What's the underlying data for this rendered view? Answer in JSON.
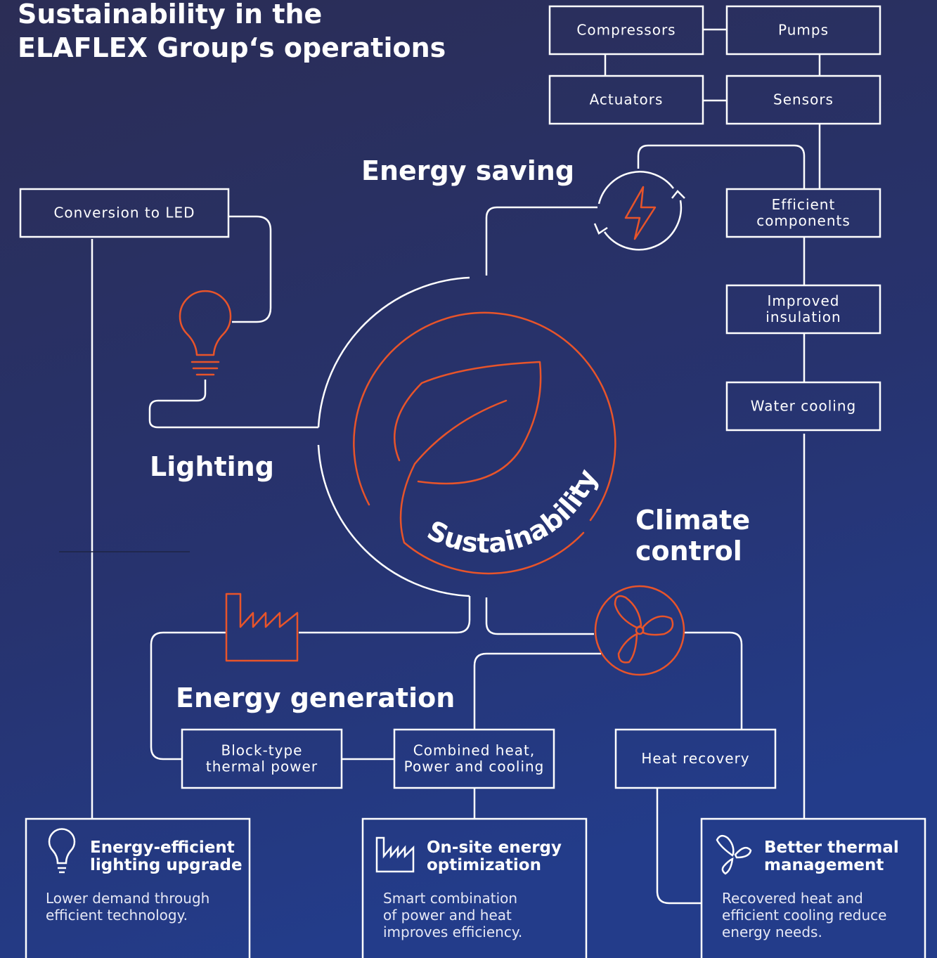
{
  "header": {
    "title": [
      "Sustainability in the",
      "ELAFLEX Group‘s operations"
    ]
  },
  "center": {
    "label": "Sustainability"
  },
  "sections": [
    {
      "label": [
        "Energy saving"
      ]
    },
    {
      "label": [
        "Lighting"
      ]
    },
    {
      "label": [
        "Climate",
        "control"
      ]
    },
    {
      "label": [
        "Energy generation"
      ]
    }
  ],
  "boxes": [
    {
      "label": [
        "Compressors"
      ]
    },
    {
      "label": [
        "Pumps"
      ]
    },
    {
      "label": [
        "Actuators"
      ]
    },
    {
      "label": [
        "Sensors"
      ]
    },
    {
      "label": [
        "Conversion to LED"
      ]
    },
    {
      "label": [
        "Efficient",
        "components"
      ]
    },
    {
      "label": [
        "Improved",
        "insulation"
      ]
    },
    {
      "label": [
        "Water cooling"
      ]
    },
    {
      "label": [
        "Block-type",
        "thermal power"
      ]
    },
    {
      "label": [
        "Combined heat,",
        "Power and cooling"
      ]
    },
    {
      "label": [
        "Heat recovery"
      ]
    }
  ],
  "cards": [
    {
      "title": [
        "Energy-efficient",
        "lighting upgrade"
      ],
      "body": [
        "Lower demand through",
        "efficient technology."
      ]
    },
    {
      "title": [
        "On-site energy",
        "optimization"
      ],
      "body": [
        "Smart combination",
        "of power and heat",
        "improves efficiency."
      ]
    },
    {
      "title": [
        "Better thermal",
        "management"
      ],
      "body": [
        "Recovered heat and",
        "efficient cooling reduce",
        "energy needs."
      ]
    }
  ]
}
